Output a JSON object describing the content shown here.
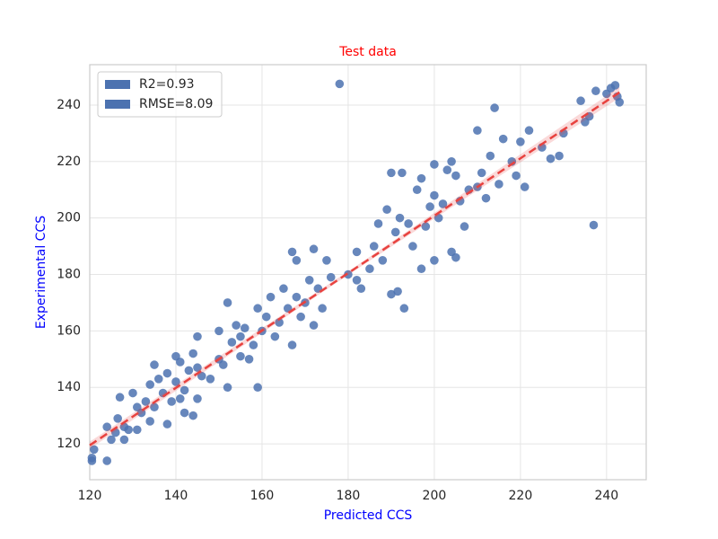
{
  "chart_data": {
    "type": "scatter",
    "title": "Test data",
    "title_color": "#ff0000",
    "x_label": "Predicted CCS",
    "y_label": "Experimental CCS",
    "label_color": "#0000ff",
    "xlim": [
      120,
      249.2
    ],
    "ylim": [
      107.3,
      254.3
    ],
    "xticks": [
      120,
      140,
      160,
      180,
      200,
      220,
      240
    ],
    "yticks": [
      120,
      140,
      160,
      180,
      200,
      220,
      240
    ],
    "grid": true,
    "legend_loc": "upper left",
    "legend": [
      "R2=0.93",
      "RMSE=8.09"
    ],
    "fit": {
      "x": [
        120,
        243
      ],
      "y": [
        119.5,
        244.5
      ],
      "color": "#e8423f"
    },
    "series": [
      {
        "color": "#4c72b0",
        "x": [
          120.5,
          120.5,
          121,
          124,
          124,
          125,
          126,
          126.5,
          127,
          128,
          128,
          129,
          130,
          131,
          131,
          132,
          133,
          134,
          134,
          135,
          135,
          136,
          137,
          138,
          138,
          139,
          140,
          140,
          141,
          141,
          142,
          142,
          143,
          144,
          144,
          145,
          145,
          145,
          146,
          148,
          150,
          150,
          151,
          152,
          152,
          153,
          154,
          155,
          155,
          156,
          157,
          158,
          159,
          159,
          160,
          161,
          162,
          163,
          164,
          165,
          166,
          167,
          167,
          168,
          168,
          169,
          170,
          171,
          172,
          172,
          173,
          174,
          175,
          176,
          178,
          180,
          182,
          182,
          183,
          185,
          186,
          187,
          188,
          189,
          190,
          190,
          191,
          192,
          193,
          194,
          195,
          196,
          197,
          197,
          198,
          199,
          200,
          200,
          201,
          202,
          203,
          204,
          204,
          205,
          206,
          207,
          208,
          210,
          210,
          211,
          212,
          213,
          214,
          215,
          216,
          218,
          219,
          220,
          221,
          222,
          225,
          227,
          229,
          230,
          234,
          235,
          236,
          237,
          237.5,
          240,
          241,
          242,
          242.5,
          243,
          191.5,
          192.5,
          200,
          205
        ],
        "values": [
          115,
          114,
          118,
          114,
          126,
          121.5,
          124,
          129,
          136.5,
          121.5,
          126,
          125,
          138,
          133,
          125,
          131,
          135,
          141,
          128,
          148,
          133,
          143,
          138,
          127,
          145,
          135,
          151,
          142,
          136,
          149,
          131,
          139,
          146,
          130,
          152,
          158,
          147,
          136,
          144,
          143,
          160,
          150,
          148,
          140,
          170,
          156,
          162,
          151,
          158,
          161,
          150,
          155,
          140,
          168,
          160,
          165,
          172,
          158,
          163,
          175,
          168,
          155,
          188,
          172,
          185,
          165,
          170,
          178,
          189,
          162,
          175,
          168,
          185,
          179,
          247.5,
          180,
          188,
          178,
          175,
          182,
          190,
          198,
          185,
          203,
          216,
          173,
          195,
          200,
          168,
          198,
          190,
          210,
          214,
          182,
          197,
          204,
          208,
          185,
          200,
          205,
          217,
          220,
          188,
          215,
          206,
          197,
          210,
          231,
          211,
          216,
          207,
          222,
          239,
          212,
          228,
          220,
          215,
          227,
          211,
          231,
          225,
          221,
          222,
          230,
          241.5,
          234,
          236,
          197.5,
          245,
          244,
          246,
          247,
          243,
          241,
          174,
          216,
          219,
          186
        ]
      }
    ]
  }
}
